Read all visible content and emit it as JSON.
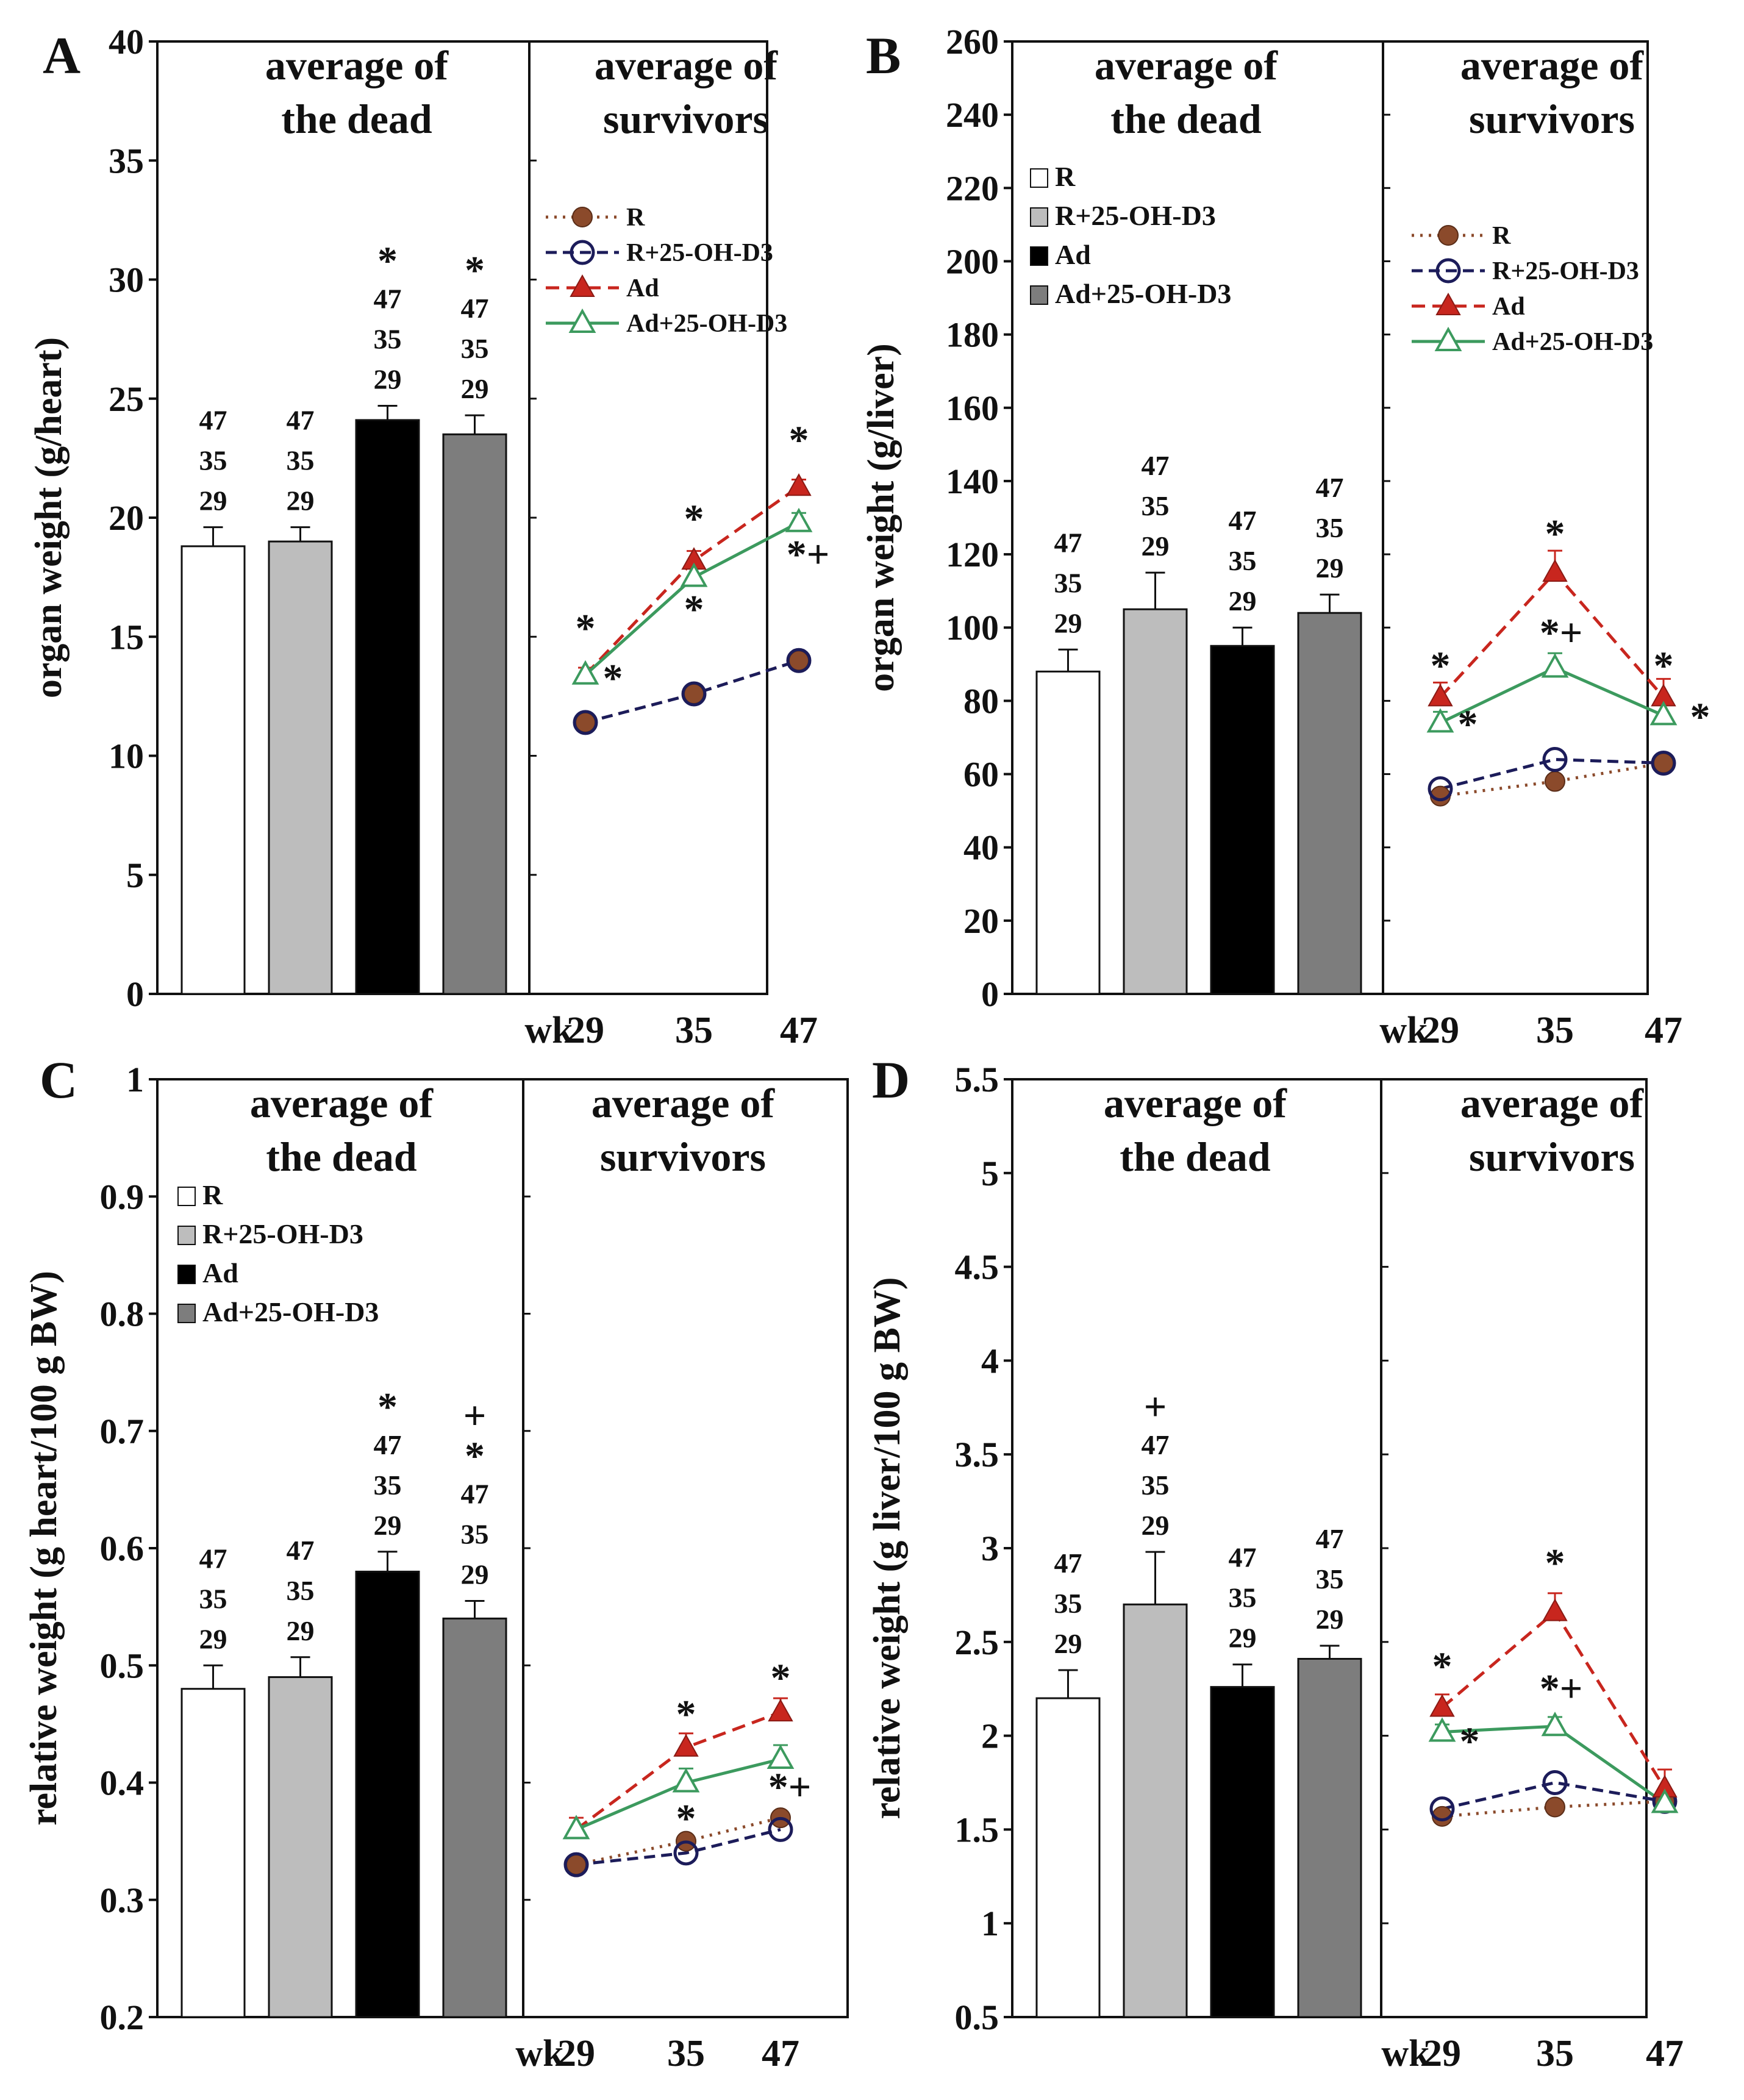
{
  "colors": {
    "R": "#8B4A2B",
    "R_25OHD3": "#1C1C5A",
    "Ad": "#C8261E",
    "Ad_25OHD3": "#3C9A5E",
    "bar_R": "#FFFFFF",
    "bar_R_25OHD3": "#BDBDBD",
    "bar_Ad": "#000000",
    "bar_Ad_25OHD3": "#7D7D7D"
  },
  "chart_data": [
    {
      "id": "A",
      "panel_label": "A",
      "type": "bar+line",
      "ylabel": "organ weight (g/heart)",
      "ylim": [
        0,
        40
      ],
      "yticks": [
        "0",
        "5",
        "10",
        "15",
        "20",
        "25",
        "30",
        "35",
        "40"
      ],
      "left_title": [
        "average of",
        "the dead"
      ],
      "right_title": [
        "average of",
        "survivors"
      ],
      "bar_legend": null,
      "line_legend": [
        "R",
        "R+25-OH-D3",
        "Ad",
        "Ad+25-OH-D3"
      ],
      "bars": [
        {
          "name": "R",
          "value": 18.8,
          "err": 0.8,
          "labels": [
            "47",
            "35",
            "29"
          ]
        },
        {
          "name": "R+25-OH-D3",
          "value": 19.0,
          "err": 0.6,
          "labels": [
            "47",
            "35",
            "29"
          ]
        },
        {
          "name": "Ad",
          "value": 24.1,
          "err": 0.6,
          "labels": [
            "*",
            "47",
            "35",
            "29"
          ]
        },
        {
          "name": "Ad+25-OH-D3",
          "value": 23.5,
          "err": 0.8,
          "labels": [
            "*",
            "47",
            "35",
            "29"
          ]
        }
      ],
      "x_prefix": "wk",
      "x": [
        "29",
        "35",
        "47"
      ],
      "series": [
        {
          "name": "R",
          "values": [
            11.4,
            12.6,
            14.0
          ],
          "err": [
            0,
            0,
            0
          ]
        },
        {
          "name": "R+25-OH-D3",
          "values": [
            11.4,
            12.6,
            14.0
          ],
          "err": [
            0,
            0,
            0
          ]
        },
        {
          "name": "Ad",
          "values": [
            13.4,
            18.2,
            21.3
          ],
          "err": [
            0.3,
            0.4,
            0.3
          ]
        },
        {
          "name": "Ad+25-OH-D3",
          "values": [
            13.4,
            17.5,
            19.8
          ],
          "err": [
            0,
            0.4,
            0.4
          ]
        }
      ],
      "annotations": [
        {
          "text": "*",
          "x": 0,
          "y": 14.8,
          "dx": 0
        },
        {
          "text": "*",
          "x": 0,
          "y": 12.7,
          "dx": 45
        },
        {
          "text": "*",
          "x": 1,
          "y": 19.4,
          "dx": 0
        },
        {
          "text": "*",
          "x": 1,
          "y": 15.6,
          "dx": 0
        },
        {
          "text": "*",
          "x": 2,
          "y": 22.7,
          "dx": 0
        },
        {
          "text": "*+",
          "x": 2,
          "y": 17.9,
          "dx": 15
        }
      ]
    },
    {
      "id": "B",
      "panel_label": "B",
      "type": "bar+line",
      "ylabel": "organ weight (g/liver)",
      "ylim": [
        0,
        260
      ],
      "yticks": [
        "0",
        "20",
        "40",
        "60",
        "80",
        "100",
        "120",
        "140",
        "160",
        "180",
        "200",
        "220",
        "240",
        "260"
      ],
      "left_title": [
        "average of",
        "the dead"
      ],
      "right_title": [
        "average of",
        "survivors"
      ],
      "bar_legend": [
        "R",
        "R+25-OH-D3",
        "Ad",
        "Ad+25-OH-D3"
      ],
      "line_legend": [
        "R",
        "R+25-OH-D3",
        "Ad",
        "Ad+25-OH-D3"
      ],
      "bars": [
        {
          "name": "R",
          "value": 88,
          "err": 6,
          "labels": [
            "47",
            "35",
            "29"
          ]
        },
        {
          "name": "R+25-OH-D3",
          "value": 105,
          "err": 10,
          "labels": [
            "47",
            "35",
            "29"
          ]
        },
        {
          "name": "Ad",
          "value": 95,
          "err": 5,
          "labels": [
            "47",
            "35",
            "29"
          ]
        },
        {
          "name": "Ad+25-OH-D3",
          "value": 104,
          "err": 5,
          "labels": [
            "47",
            "35",
            "29"
          ]
        }
      ],
      "x_prefix": "wk",
      "x": [
        "29",
        "35",
        "47"
      ],
      "series": [
        {
          "name": "R",
          "values": [
            54,
            58,
            63
          ],
          "err": [
            0,
            0,
            0
          ]
        },
        {
          "name": "R+25-OH-D3",
          "values": [
            56,
            64,
            63
          ],
          "err": [
            0,
            0,
            0
          ]
        },
        {
          "name": "Ad",
          "values": [
            81,
            115,
            81
          ],
          "err": [
            4,
            6,
            5
          ]
        },
        {
          "name": "Ad+25-OH-D3",
          "values": [
            74,
            89,
            76
          ],
          "err": [
            3,
            4,
            3
          ]
        }
      ],
      "annotations": [
        {
          "text": "*",
          "x": 0,
          "y": 86,
          "dx": 0
        },
        {
          "text": "*",
          "x": 0,
          "y": 70,
          "dx": 45
        },
        {
          "text": "*",
          "x": 1,
          "y": 122,
          "dx": 0
        },
        {
          "text": "*+",
          "x": 1,
          "y": 95,
          "dx": 10
        },
        {
          "text": "*",
          "x": 2,
          "y": 86,
          "dx": 0
        },
        {
          "text": "*",
          "x": 2,
          "y": 72,
          "dx": 60
        }
      ]
    },
    {
      "id": "C",
      "panel_label": "C",
      "type": "bar+line",
      "ylabel": "relative weight (g heart/100 g BW)",
      "ylim": [
        0.2,
        1.0
      ],
      "yticks": [
        "0.2",
        "0.3",
        "0.4",
        "0.5",
        "0.6",
        "0.7",
        "0.8",
        "0.9",
        "1"
      ],
      "left_title": [
        "average of",
        "the dead"
      ],
      "right_title": [
        "average of",
        "survivors"
      ],
      "bar_legend": [
        "R",
        "R+25-OH-D3",
        "Ad",
        "Ad+25-OH-D3"
      ],
      "line_legend": null,
      "bars": [
        {
          "name": "R",
          "value": 0.48,
          "err": 0.02,
          "labels": [
            "47",
            "35",
            "29"
          ]
        },
        {
          "name": "R+25-OH-D3",
          "value": 0.49,
          "err": 0.017,
          "labels": [
            "47",
            "35",
            "29"
          ]
        },
        {
          "name": "Ad",
          "value": 0.58,
          "err": 0.017,
          "labels": [
            "*",
            "47",
            "35",
            "29"
          ]
        },
        {
          "name": "Ad+25-OH-D3",
          "value": 0.54,
          "err": 0.015,
          "labels": [
            "+",
            "*",
            "47",
            "35",
            "29"
          ]
        }
      ],
      "x_prefix": "wk",
      "x": [
        "29",
        "35",
        "47"
      ],
      "series": [
        {
          "name": "R",
          "values": [
            0.33,
            0.35,
            0.37
          ],
          "err": [
            0,
            0,
            0
          ]
        },
        {
          "name": "R+25-OH-D3",
          "values": [
            0.33,
            0.34,
            0.36
          ],
          "err": [
            0,
            0,
            0
          ]
        },
        {
          "name": "Ad",
          "values": [
            0.36,
            0.43,
            0.46
          ],
          "err": [
            0.01,
            0.012,
            0.012
          ]
        },
        {
          "name": "Ad+25-OH-D3",
          "values": [
            0.36,
            0.4,
            0.42
          ],
          "err": [
            0,
            0.012,
            0.012
          ]
        }
      ],
      "annotations": [
        {
          "text": "*",
          "x": 1,
          "y": 0.447,
          "dx": 0
        },
        {
          "text": "*",
          "x": 1,
          "y": 0.358,
          "dx": 0
        },
        {
          "text": "*",
          "x": 2,
          "y": 0.478,
          "dx": 0
        },
        {
          "text": "*+",
          "x": 2,
          "y": 0.385,
          "dx": 15
        }
      ]
    },
    {
      "id": "D",
      "panel_label": "D",
      "type": "bar+line",
      "ylabel": "relative weight (g liver/100 g BW)",
      "ylim": [
        0.5,
        5.5
      ],
      "yticks": [
        "0.5",
        "1",
        "1.5",
        "2",
        "2.5",
        "3",
        "3.5",
        "4",
        "4.5",
        "5",
        "5.5"
      ],
      "left_title": [
        "average of",
        "the dead"
      ],
      "right_title": [
        "average of",
        "survivors"
      ],
      "bar_legend": null,
      "line_legend": null,
      "bars": [
        {
          "name": "R",
          "value": 2.2,
          "err": 0.15,
          "labels": [
            "47",
            "35",
            "29"
          ]
        },
        {
          "name": "R+25-OH-D3",
          "value": 2.7,
          "err": 0.28,
          "labels": [
            "+",
            "47",
            "35",
            "29"
          ]
        },
        {
          "name": "Ad",
          "value": 2.26,
          "err": 0.12,
          "labels": [
            "47",
            "35",
            "29"
          ]
        },
        {
          "name": "Ad+25-OH-D3",
          "value": 2.41,
          "err": 0.07,
          "labels": [
            "47",
            "35",
            "29"
          ]
        }
      ],
      "x_prefix": "wk",
      "x": [
        "29",
        "35",
        "47"
      ],
      "series": [
        {
          "name": "R",
          "values": [
            1.57,
            1.62,
            1.65
          ],
          "err": [
            0,
            0,
            0
          ]
        },
        {
          "name": "R+25-OH-D3",
          "values": [
            1.61,
            1.75,
            1.65
          ],
          "err": [
            0,
            0,
            0
          ]
        },
        {
          "name": "Ad",
          "values": [
            2.15,
            2.66,
            1.72
          ],
          "err": [
            0.07,
            0.1,
            0.1
          ]
        },
        {
          "name": "Ad+25-OH-D3",
          "values": [
            2.02,
            2.05,
            1.64
          ],
          "err": [
            0.04,
            0.05,
            0.03
          ]
        }
      ],
      "annotations": [
        {
          "text": "*",
          "x": 0,
          "y": 2.3,
          "dx": 0
        },
        {
          "text": "*",
          "x": 0,
          "y": 1.9,
          "dx": 45
        },
        {
          "text": "*",
          "x": 1,
          "y": 2.85,
          "dx": 0
        },
        {
          "text": "*+",
          "x": 1,
          "y": 2.18,
          "dx": 10
        }
      ]
    }
  ]
}
